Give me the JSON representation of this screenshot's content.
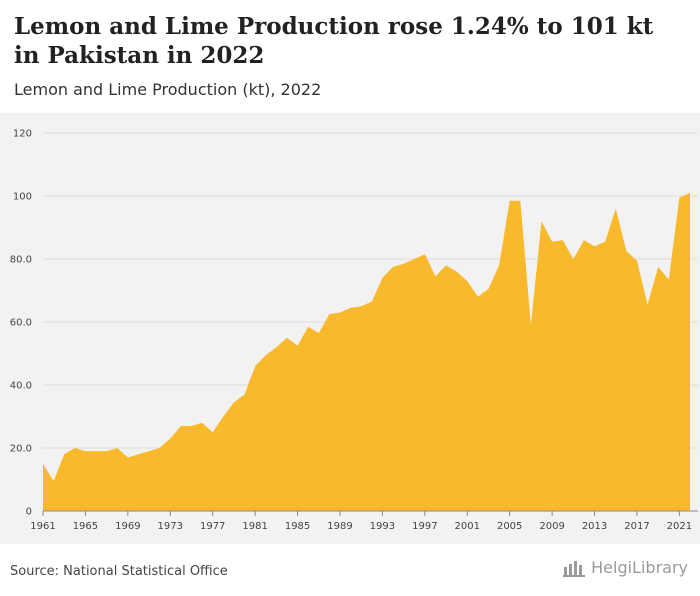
{
  "header": {
    "title": "Lemon and Lime Production rose 1.24% to 101 kt in Pakistan in 2022",
    "subtitle": "Lemon and Lime Production (kt), 2022"
  },
  "footer": {
    "source": "Source: National Statistical Office",
    "brand": "HelgiLibrary",
    "brand_icon": "helgilibrary-logo-icon"
  },
  "chart_data": {
    "type": "area",
    "title": "Lemon and Lime Production (kt), 2022",
    "xlabel": "",
    "ylabel": "",
    "ylim": [
      0,
      120
    ],
    "xlim": [
      1961,
      2022
    ],
    "y_ticks": [
      "0",
      "20.0",
      "40.0",
      "60.0",
      "80.0",
      "100",
      "120"
    ],
    "y_tick_values": [
      0,
      20,
      40,
      60,
      80,
      100,
      120
    ],
    "x_ticks": [
      "1961",
      "1965",
      "1969",
      "1973",
      "1977",
      "1981",
      "1985",
      "1989",
      "1993",
      "1997",
      "2001",
      "2005",
      "2009",
      "2013",
      "2017",
      "2021"
    ],
    "x_tick_values": [
      1961,
      1965,
      1969,
      1973,
      1977,
      1981,
      1985,
      1989,
      1993,
      1997,
      2001,
      2005,
      2009,
      2013,
      2017,
      2021
    ],
    "grid": true,
    "legend": "none",
    "fill_color": "#f9b92d",
    "series": [
      {
        "x": [
          1961,
          1962,
          1963,
          1964,
          1965,
          1966,
          1967,
          1968,
          1969,
          1970,
          1971,
          1972,
          1973,
          1974,
          1975,
          1976,
          1977,
          1978,
          1979,
          1980,
          1981,
          1982,
          1983,
          1984,
          1985,
          1986,
          1987,
          1988,
          1989,
          1990,
          1991,
          1992,
          1993,
          1994,
          1995,
          1996,
          1997,
          1998,
          1999,
          2000,
          2001,
          2002,
          2003,
          2004,
          2005,
          2006,
          2007,
          2008,
          2009,
          2010,
          2011,
          2012,
          2013,
          2014,
          2015,
          2016,
          2017,
          2018,
          2019,
          2020,
          2021,
          2022
        ],
        "values": [
          15,
          9.5,
          18,
          20,
          19,
          19,
          19,
          20,
          17,
          18,
          19,
          20,
          23,
          27,
          27,
          28,
          25,
          30,
          34.5,
          37,
          46,
          49.5,
          52,
          55,
          52.5,
          58.5,
          56.5,
          62.5,
          63,
          64.5,
          65,
          66.5,
          74,
          77.5,
          78.5,
          80,
          81.5,
          74.5,
          78,
          76,
          73,
          68,
          70.5,
          78,
          98.5,
          98.5,
          59,
          92,
          85.5,
          86,
          80,
          86,
          84,
          85.5,
          96,
          82.5,
          79.5,
          65.5,
          77.5,
          73.5,
          99.5,
          101
        ]
      }
    ]
  }
}
